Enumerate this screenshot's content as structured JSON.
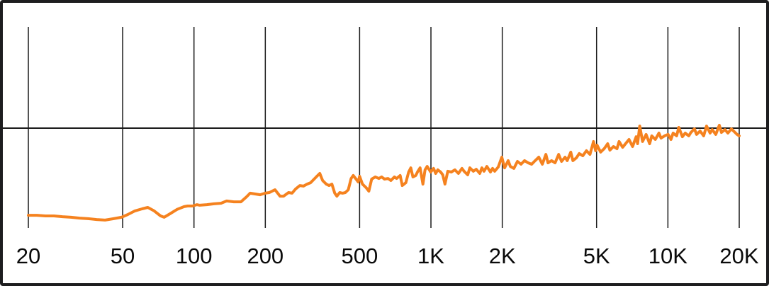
{
  "window": {
    "background": "#ffffff",
    "border_color": "#1d1d1f"
  },
  "chart_data": {
    "type": "line",
    "description": "Noisy frequency-response curve rising from low level at 20 Hz to the reference line near 20 kHz; jitter amplitude increases with frequency. Point format: [fraction along log x-axis 20Hz-20kHz, level as fraction of plot height from bottom].",
    "x_axis": {
      "scale": "log",
      "min_hz": 20,
      "max_hz": 20000,
      "ticks": [
        {
          "hz": 20,
          "label": "20"
        },
        {
          "hz": 50,
          "label": "50"
        },
        {
          "hz": 100,
          "label": "100"
        },
        {
          "hz": 200,
          "label": "200"
        },
        {
          "hz": 500,
          "label": "500"
        },
        {
          "hz": 1000,
          "label": "1K"
        },
        {
          "hz": 2000,
          "label": "2K"
        },
        {
          "hz": 5000,
          "label": "5K"
        },
        {
          "hz": 10000,
          "label": "10K"
        },
        {
          "hz": 20000,
          "label": "20K"
        }
      ]
    },
    "y_axis": {
      "labels_visible": false,
      "reference_line_level": 0.4965
    },
    "grid": {
      "color": "#1a1a1a",
      "vertical_visible": true,
      "horizontal_reference_visible": true
    },
    "series": [
      {
        "name": "frequency-response",
        "color": "#F5821F",
        "points": [
          [
            0.0,
            0.063
          ],
          [
            0.012,
            0.063
          ],
          [
            0.024,
            0.06
          ],
          [
            0.036,
            0.06
          ],
          [
            0.048,
            0.056
          ],
          [
            0.06,
            0.053
          ],
          [
            0.072,
            0.049
          ],
          [
            0.084,
            0.046
          ],
          [
            0.096,
            0.042
          ],
          [
            0.108,
            0.039
          ],
          [
            0.12,
            0.046
          ],
          [
            0.131,
            0.053
          ],
          [
            0.14,
            0.067
          ],
          [
            0.15,
            0.085
          ],
          [
            0.16,
            0.095
          ],
          [
            0.168,
            0.102
          ],
          [
            0.177,
            0.085
          ],
          [
            0.186,
            0.06
          ],
          [
            0.191,
            0.053
          ],
          [
            0.199,
            0.07
          ],
          [
            0.209,
            0.092
          ],
          [
            0.219,
            0.106
          ],
          [
            0.224,
            0.109
          ],
          [
            0.231,
            0.109
          ],
          [
            0.237,
            0.116
          ],
          [
            0.241,
            0.113
          ],
          [
            0.251,
            0.116
          ],
          [
            0.261,
            0.12
          ],
          [
            0.271,
            0.123
          ],
          [
            0.279,
            0.134
          ],
          [
            0.289,
            0.13
          ],
          [
            0.299,
            0.13
          ],
          [
            0.307,
            0.155
          ],
          [
            0.312,
            0.173
          ],
          [
            0.319,
            0.169
          ],
          [
            0.326,
            0.165
          ],
          [
            0.333,
            0.173
          ],
          [
            0.339,
            0.176
          ],
          [
            0.347,
            0.19
          ],
          [
            0.354,
            0.158
          ],
          [
            0.359,
            0.158
          ],
          [
            0.366,
            0.176
          ],
          [
            0.371,
            0.173
          ],
          [
            0.376,
            0.194
          ],
          [
            0.382,
            0.211
          ],
          [
            0.387,
            0.208
          ],
          [
            0.392,
            0.218
          ],
          [
            0.397,
            0.225
          ],
          [
            0.402,
            0.243
          ],
          [
            0.407,
            0.261
          ],
          [
            0.41,
            0.271
          ],
          [
            0.414,
            0.236
          ],
          [
            0.419,
            0.218
          ],
          [
            0.423,
            0.211
          ],
          [
            0.427,
            0.218
          ],
          [
            0.431,
            0.173
          ],
          [
            0.434,
            0.158
          ],
          [
            0.438,
            0.176
          ],
          [
            0.442,
            0.173
          ],
          [
            0.446,
            0.176
          ],
          [
            0.45,
            0.19
          ],
          [
            0.454,
            0.246
          ],
          [
            0.457,
            0.261
          ],
          [
            0.461,
            0.243
          ],
          [
            0.464,
            0.229
          ],
          [
            0.466,
            0.257
          ],
          [
            0.47,
            0.218
          ],
          [
            0.475,
            0.201
          ],
          [
            0.479,
            0.183
          ],
          [
            0.483,
            0.243
          ],
          [
            0.488,
            0.254
          ],
          [
            0.493,
            0.246
          ],
          [
            0.497,
            0.254
          ],
          [
            0.501,
            0.243
          ],
          [
            0.506,
            0.246
          ],
          [
            0.51,
            0.236
          ],
          [
            0.515,
            0.254
          ],
          [
            0.518,
            0.246
          ],
          [
            0.523,
            0.261
          ],
          [
            0.526,
            0.211
          ],
          [
            0.531,
            0.225
          ],
          [
            0.535,
            0.278
          ],
          [
            0.538,
            0.299
          ],
          [
            0.541,
            0.254
          ],
          [
            0.545,
            0.261
          ],
          [
            0.548,
            0.282
          ],
          [
            0.551,
            0.299
          ],
          [
            0.555,
            0.218
          ],
          [
            0.558,
            0.289
          ],
          [
            0.561,
            0.306
          ],
          [
            0.566,
            0.278
          ],
          [
            0.57,
            0.296
          ],
          [
            0.573,
            0.271
          ],
          [
            0.576,
            0.289
          ],
          [
            0.58,
            0.278
          ],
          [
            0.583,
            0.264
          ],
          [
            0.586,
            0.218
          ],
          [
            0.59,
            0.282
          ],
          [
            0.595,
            0.278
          ],
          [
            0.6,
            0.289
          ],
          [
            0.605,
            0.271
          ],
          [
            0.61,
            0.296
          ],
          [
            0.613,
            0.282
          ],
          [
            0.618,
            0.264
          ],
          [
            0.621,
            0.299
          ],
          [
            0.626,
            0.282
          ],
          [
            0.63,
            0.292
          ],
          [
            0.635,
            0.271
          ],
          [
            0.638,
            0.299
          ],
          [
            0.641,
            0.282
          ],
          [
            0.645,
            0.306
          ],
          [
            0.65,
            0.278
          ],
          [
            0.653,
            0.296
          ],
          [
            0.656,
            0.282
          ],
          [
            0.661,
            0.303
          ],
          [
            0.666,
            0.352
          ],
          [
            0.67,
            0.299
          ],
          [
            0.675,
            0.335
          ],
          [
            0.678,
            0.306
          ],
          [
            0.683,
            0.296
          ],
          [
            0.688,
            0.331
          ],
          [
            0.693,
            0.317
          ],
          [
            0.698,
            0.335
          ],
          [
            0.703,
            0.324
          ],
          [
            0.708,
            0.317
          ],
          [
            0.713,
            0.335
          ],
          [
            0.718,
            0.352
          ],
          [
            0.723,
            0.317
          ],
          [
            0.728,
            0.366
          ],
          [
            0.731,
            0.324
          ],
          [
            0.736,
            0.335
          ],
          [
            0.741,
            0.324
          ],
          [
            0.746,
            0.366
          ],
          [
            0.75,
            0.331
          ],
          [
            0.755,
            0.352
          ],
          [
            0.758,
            0.335
          ],
          [
            0.763,
            0.377
          ],
          [
            0.766,
            0.335
          ],
          [
            0.771,
            0.349
          ],
          [
            0.775,
            0.37
          ],
          [
            0.78,
            0.359
          ],
          [
            0.785,
            0.384
          ],
          [
            0.79,
            0.366
          ],
          [
            0.795,
            0.43
          ],
          [
            0.798,
            0.384
          ],
          [
            0.8,
            0.412
          ],
          [
            0.805,
            0.377
          ],
          [
            0.81,
            0.394
          ],
          [
            0.815,
            0.419
          ],
          [
            0.818,
            0.387
          ],
          [
            0.823,
            0.405
          ],
          [
            0.828,
            0.394
          ],
          [
            0.831,
            0.43
          ],
          [
            0.836,
            0.401
          ],
          [
            0.841,
            0.423
          ],
          [
            0.845,
            0.44
          ],
          [
            0.85,
            0.405
          ],
          [
            0.855,
            0.454
          ],
          [
            0.857,
            0.419
          ],
          [
            0.86,
            0.507
          ],
          [
            0.864,
            0.43
          ],
          [
            0.869,
            0.465
          ],
          [
            0.874,
            0.419
          ],
          [
            0.877,
            0.458
          ],
          [
            0.882,
            0.44
          ],
          [
            0.887,
            0.472
          ],
          [
            0.89,
            0.447
          ],
          [
            0.895,
            0.458
          ],
          [
            0.9,
            0.465
          ],
          [
            0.904,
            0.44
          ],
          [
            0.907,
            0.472
          ],
          [
            0.912,
            0.458
          ],
          [
            0.915,
            0.5
          ],
          [
            0.92,
            0.454
          ],
          [
            0.924,
            0.472
          ],
          [
            0.929,
            0.458
          ],
          [
            0.932,
            0.475
          ],
          [
            0.937,
            0.493
          ],
          [
            0.94,
            0.465
          ],
          [
            0.945,
            0.482
          ],
          [
            0.95,
            0.458
          ],
          [
            0.954,
            0.507
          ],
          [
            0.959,
            0.472
          ],
          [
            0.962,
            0.489
          ],
          [
            0.967,
            0.465
          ],
          [
            0.972,
            0.511
          ],
          [
            0.975,
            0.475
          ],
          [
            0.98,
            0.489
          ],
          [
            0.984,
            0.472
          ],
          [
            0.989,
            0.493
          ],
          [
            0.992,
            0.482
          ],
          [
            0.997,
            0.465
          ],
          [
            1.0,
            0.458
          ]
        ]
      }
    ]
  }
}
